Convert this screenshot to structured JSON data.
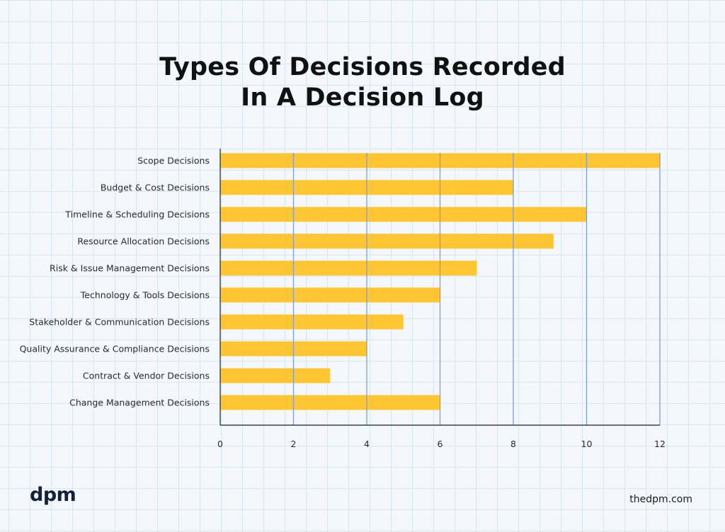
{
  "title_lines": [
    "Types Of Decisions Recorded",
    "In A Decision Log"
  ],
  "footer": {
    "logo": "dpm",
    "site": "thedpm.com"
  },
  "chart_data": {
    "type": "bar",
    "orientation": "horizontal",
    "title": "Types Of Decisions Recorded In A Decision Log",
    "categories": [
      "Scope Decisions",
      "Budget & Cost Decisions",
      "Timeline & Scheduling Decisions",
      "Resource Allocation Decisions",
      "Risk & Issue Management Decisions",
      "Technology & Tools Decisions",
      "Stakeholder & Communication Decisions",
      "Quality Assurance & Compliance Decisions",
      "Contract & Vendor Decisions",
      "Change Management Decisions"
    ],
    "values": [
      12,
      8,
      10,
      9.1,
      7,
      6,
      5,
      4,
      3,
      6
    ],
    "xlim": [
      0,
      12
    ],
    "xticks": [
      0,
      2,
      4,
      6,
      8,
      10,
      12
    ],
    "grid": "vertical",
    "colors": {
      "bar": "#ffc532",
      "grid": "#7e9fd6",
      "axis": "#222222"
    }
  }
}
